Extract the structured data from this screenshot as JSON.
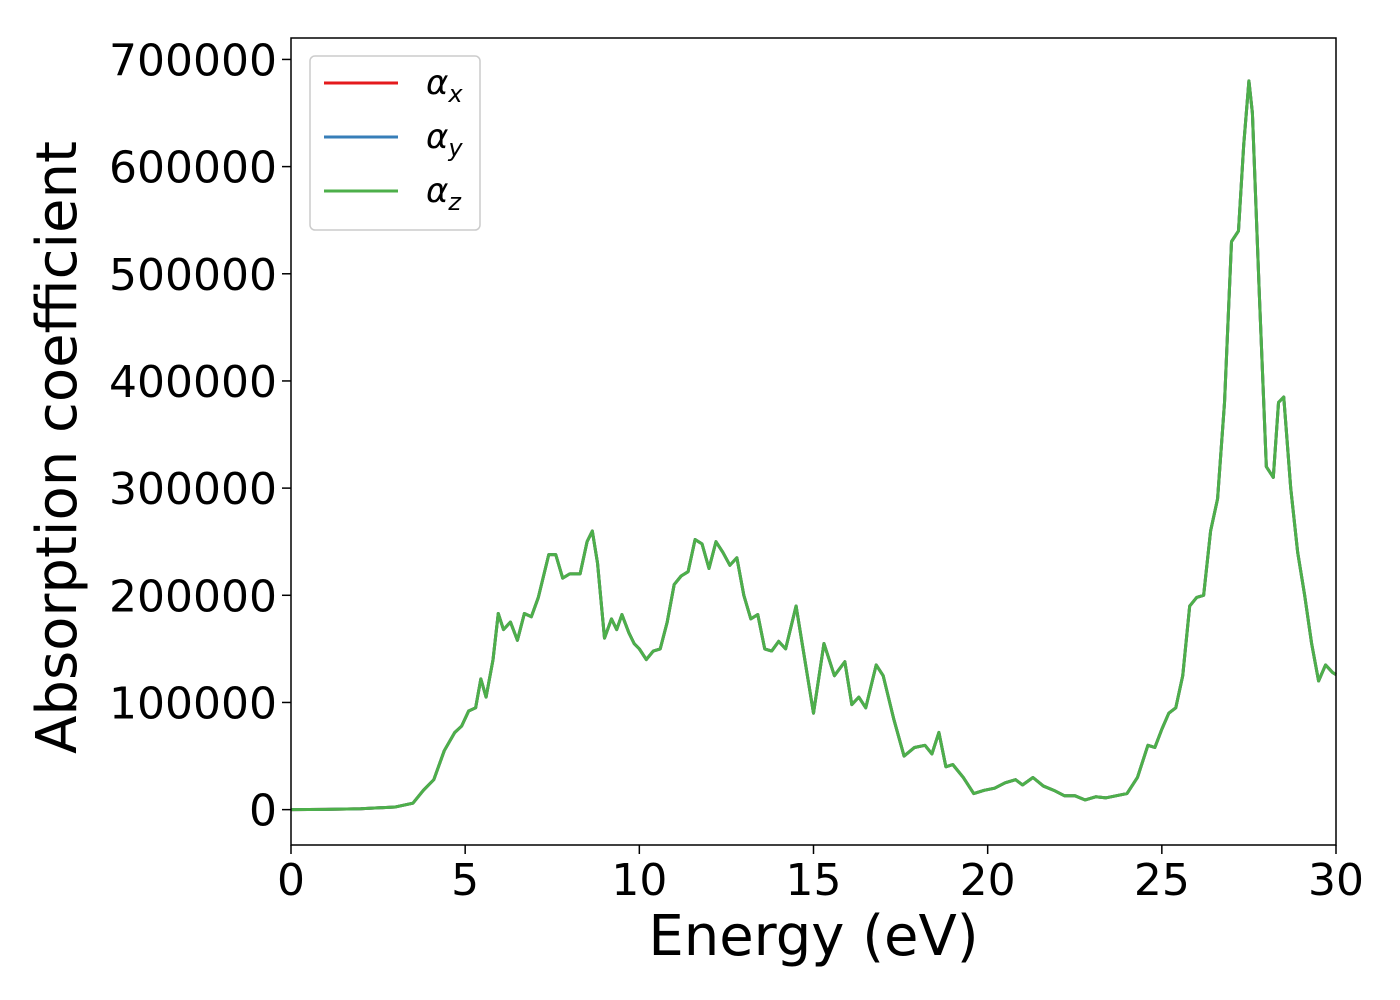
{
  "chart_data": {
    "type": "line",
    "title": "",
    "xlabel": "Energy (eV)",
    "ylabel": "Absorption coefficient",
    "xlim": [
      0,
      30
    ],
    "ylim": [
      -33000,
      720000
    ],
    "xticks": [
      0,
      5,
      10,
      15,
      20,
      25,
      30
    ],
    "xtick_labels": [
      "0",
      "5",
      "10",
      "15",
      "20",
      "25",
      "30"
    ],
    "yticks": [
      0,
      100000,
      200000,
      300000,
      400000,
      500000,
      600000,
      700000
    ],
    "ytick_labels": [
      "0",
      "100000",
      "200000",
      "300000",
      "400000",
      "500000",
      "600000",
      "700000"
    ],
    "grid": false,
    "legend_position": "top-left",
    "x": [
      0,
      1,
      2,
      3,
      3.5,
      3.8,
      4.1,
      4.4,
      4.7,
      4.9,
      5.1,
      5.3,
      5.45,
      5.6,
      5.8,
      5.95,
      6.1,
      6.3,
      6.5,
      6.7,
      6.9,
      7.1,
      7.4,
      7.6,
      7.8,
      8.0,
      8.3,
      8.5,
      8.65,
      8.8,
      9.0,
      9.2,
      9.35,
      9.5,
      9.7,
      9.85,
      10.0,
      10.2,
      10.4,
      10.6,
      10.8,
      11.0,
      11.2,
      11.4,
      11.6,
      11.8,
      12.0,
      12.2,
      12.4,
      12.6,
      12.8,
      13.0,
      13.2,
      13.4,
      13.6,
      13.8,
      14.0,
      14.2,
      14.5,
      14.7,
      15.0,
      15.3,
      15.6,
      15.9,
      16.1,
      16.3,
      16.5,
      16.8,
      17.0,
      17.3,
      17.6,
      17.9,
      18.2,
      18.4,
      18.6,
      18.8,
      19.0,
      19.3,
      19.6,
      19.9,
      20.2,
      20.5,
      20.8,
      21.0,
      21.3,
      21.6,
      21.9,
      22.2,
      22.5,
      22.8,
      23.1,
      23.4,
      23.7,
      24.0,
      24.3,
      24.6,
      24.8,
      25.0,
      25.2,
      25.4,
      25.6,
      25.8,
      26.0,
      26.2,
      26.4,
      26.6,
      26.8,
      27.0,
      27.2,
      27.35,
      27.5,
      27.6,
      27.8,
      28.0,
      28.2,
      28.35,
      28.5,
      28.7,
      28.9,
      29.1,
      29.3,
      29.5,
      29.7,
      29.9,
      30.0
    ],
    "series": [
      {
        "name": "α_x",
        "color": "#e41a1c",
        "values": [
          0,
          200,
          800,
          2500,
          6000,
          18000,
          28000,
          55000,
          72000,
          78000,
          92000,
          95000,
          122000,
          105000,
          140000,
          183000,
          168000,
          175000,
          158000,
          183000,
          180000,
          198000,
          238000,
          238000,
          216000,
          220000,
          220000,
          250000,
          260000,
          230000,
          160000,
          178000,
          168000,
          182000,
          165000,
          155000,
          150000,
          140000,
          148000,
          150000,
          175000,
          210000,
          218000,
          222000,
          252000,
          248000,
          225000,
          250000,
          240000,
          228000,
          235000,
          200000,
          178000,
          182000,
          150000,
          148000,
          157000,
          150000,
          190000,
          150000,
          90000,
          155000,
          125000,
          138000,
          98000,
          105000,
          95000,
          135000,
          125000,
          85000,
          50000,
          58000,
          60000,
          52000,
          72000,
          40000,
          42000,
          30000,
          15000,
          18000,
          20000,
          25000,
          28000,
          23000,
          30000,
          22000,
          18000,
          13000,
          13000,
          9000,
          12000,
          11000,
          13000,
          15000,
          30000,
          60000,
          58000,
          75000,
          90000,
          95000,
          125000,
          190000,
          198000,
          200000,
          260000,
          290000,
          380000,
          530000,
          540000,
          620000,
          680000,
          650000,
          480000,
          320000,
          310000,
          380000,
          385000,
          300000,
          240000,
          200000,
          155000,
          120000,
          135000,
          128000,
          126000
        ]
      },
      {
        "name": "α_y",
        "color": "#377eb8",
        "values": [
          0,
          200,
          800,
          2500,
          6000,
          18000,
          28000,
          55000,
          72000,
          78000,
          92000,
          95000,
          122000,
          105000,
          140000,
          183000,
          168000,
          175000,
          158000,
          183000,
          180000,
          198000,
          238000,
          238000,
          216000,
          220000,
          220000,
          250000,
          260000,
          230000,
          160000,
          178000,
          168000,
          182000,
          165000,
          155000,
          150000,
          140000,
          148000,
          150000,
          175000,
          210000,
          218000,
          222000,
          252000,
          248000,
          225000,
          250000,
          240000,
          228000,
          235000,
          200000,
          178000,
          182000,
          150000,
          148000,
          157000,
          150000,
          190000,
          150000,
          90000,
          155000,
          125000,
          138000,
          98000,
          105000,
          95000,
          135000,
          125000,
          85000,
          50000,
          58000,
          60000,
          52000,
          72000,
          40000,
          42000,
          30000,
          15000,
          18000,
          20000,
          25000,
          28000,
          23000,
          30000,
          22000,
          18000,
          13000,
          13000,
          9000,
          12000,
          11000,
          13000,
          15000,
          30000,
          60000,
          58000,
          75000,
          90000,
          95000,
          125000,
          190000,
          198000,
          200000,
          260000,
          290000,
          380000,
          530000,
          540000,
          620000,
          680000,
          650000,
          480000,
          320000,
          310000,
          380000,
          385000,
          300000,
          240000,
          200000,
          155000,
          120000,
          135000,
          128000,
          126000
        ]
      },
      {
        "name": "α_z",
        "color": "#4daf4a",
        "values": [
          0,
          200,
          800,
          2500,
          6000,
          18000,
          28000,
          55000,
          72000,
          78000,
          92000,
          95000,
          122000,
          105000,
          140000,
          183000,
          168000,
          175000,
          158000,
          183000,
          180000,
          198000,
          238000,
          238000,
          216000,
          220000,
          220000,
          250000,
          260000,
          230000,
          160000,
          178000,
          168000,
          182000,
          165000,
          155000,
          150000,
          140000,
          148000,
          150000,
          175000,
          210000,
          218000,
          222000,
          252000,
          248000,
          225000,
          250000,
          240000,
          228000,
          235000,
          200000,
          178000,
          182000,
          150000,
          148000,
          157000,
          150000,
          190000,
          150000,
          90000,
          155000,
          125000,
          138000,
          98000,
          105000,
          95000,
          135000,
          125000,
          85000,
          50000,
          58000,
          60000,
          52000,
          72000,
          40000,
          42000,
          30000,
          15000,
          18000,
          20000,
          25000,
          28000,
          23000,
          30000,
          22000,
          18000,
          13000,
          13000,
          9000,
          12000,
          11000,
          13000,
          15000,
          30000,
          60000,
          58000,
          75000,
          90000,
          95000,
          125000,
          190000,
          198000,
          200000,
          260000,
          290000,
          380000,
          530000,
          540000,
          620000,
          680000,
          650000,
          480000,
          320000,
          310000,
          380000,
          385000,
          300000,
          240000,
          200000,
          155000,
          120000,
          135000,
          128000,
          126000
        ]
      }
    ],
    "legend": [
      {
        "symbol": "α",
        "sub": "x",
        "color": "#e41a1c"
      },
      {
        "symbol": "α",
        "sub": "y",
        "color": "#377eb8"
      },
      {
        "symbol": "α",
        "sub": "z",
        "color": "#4daf4a"
      }
    ]
  }
}
